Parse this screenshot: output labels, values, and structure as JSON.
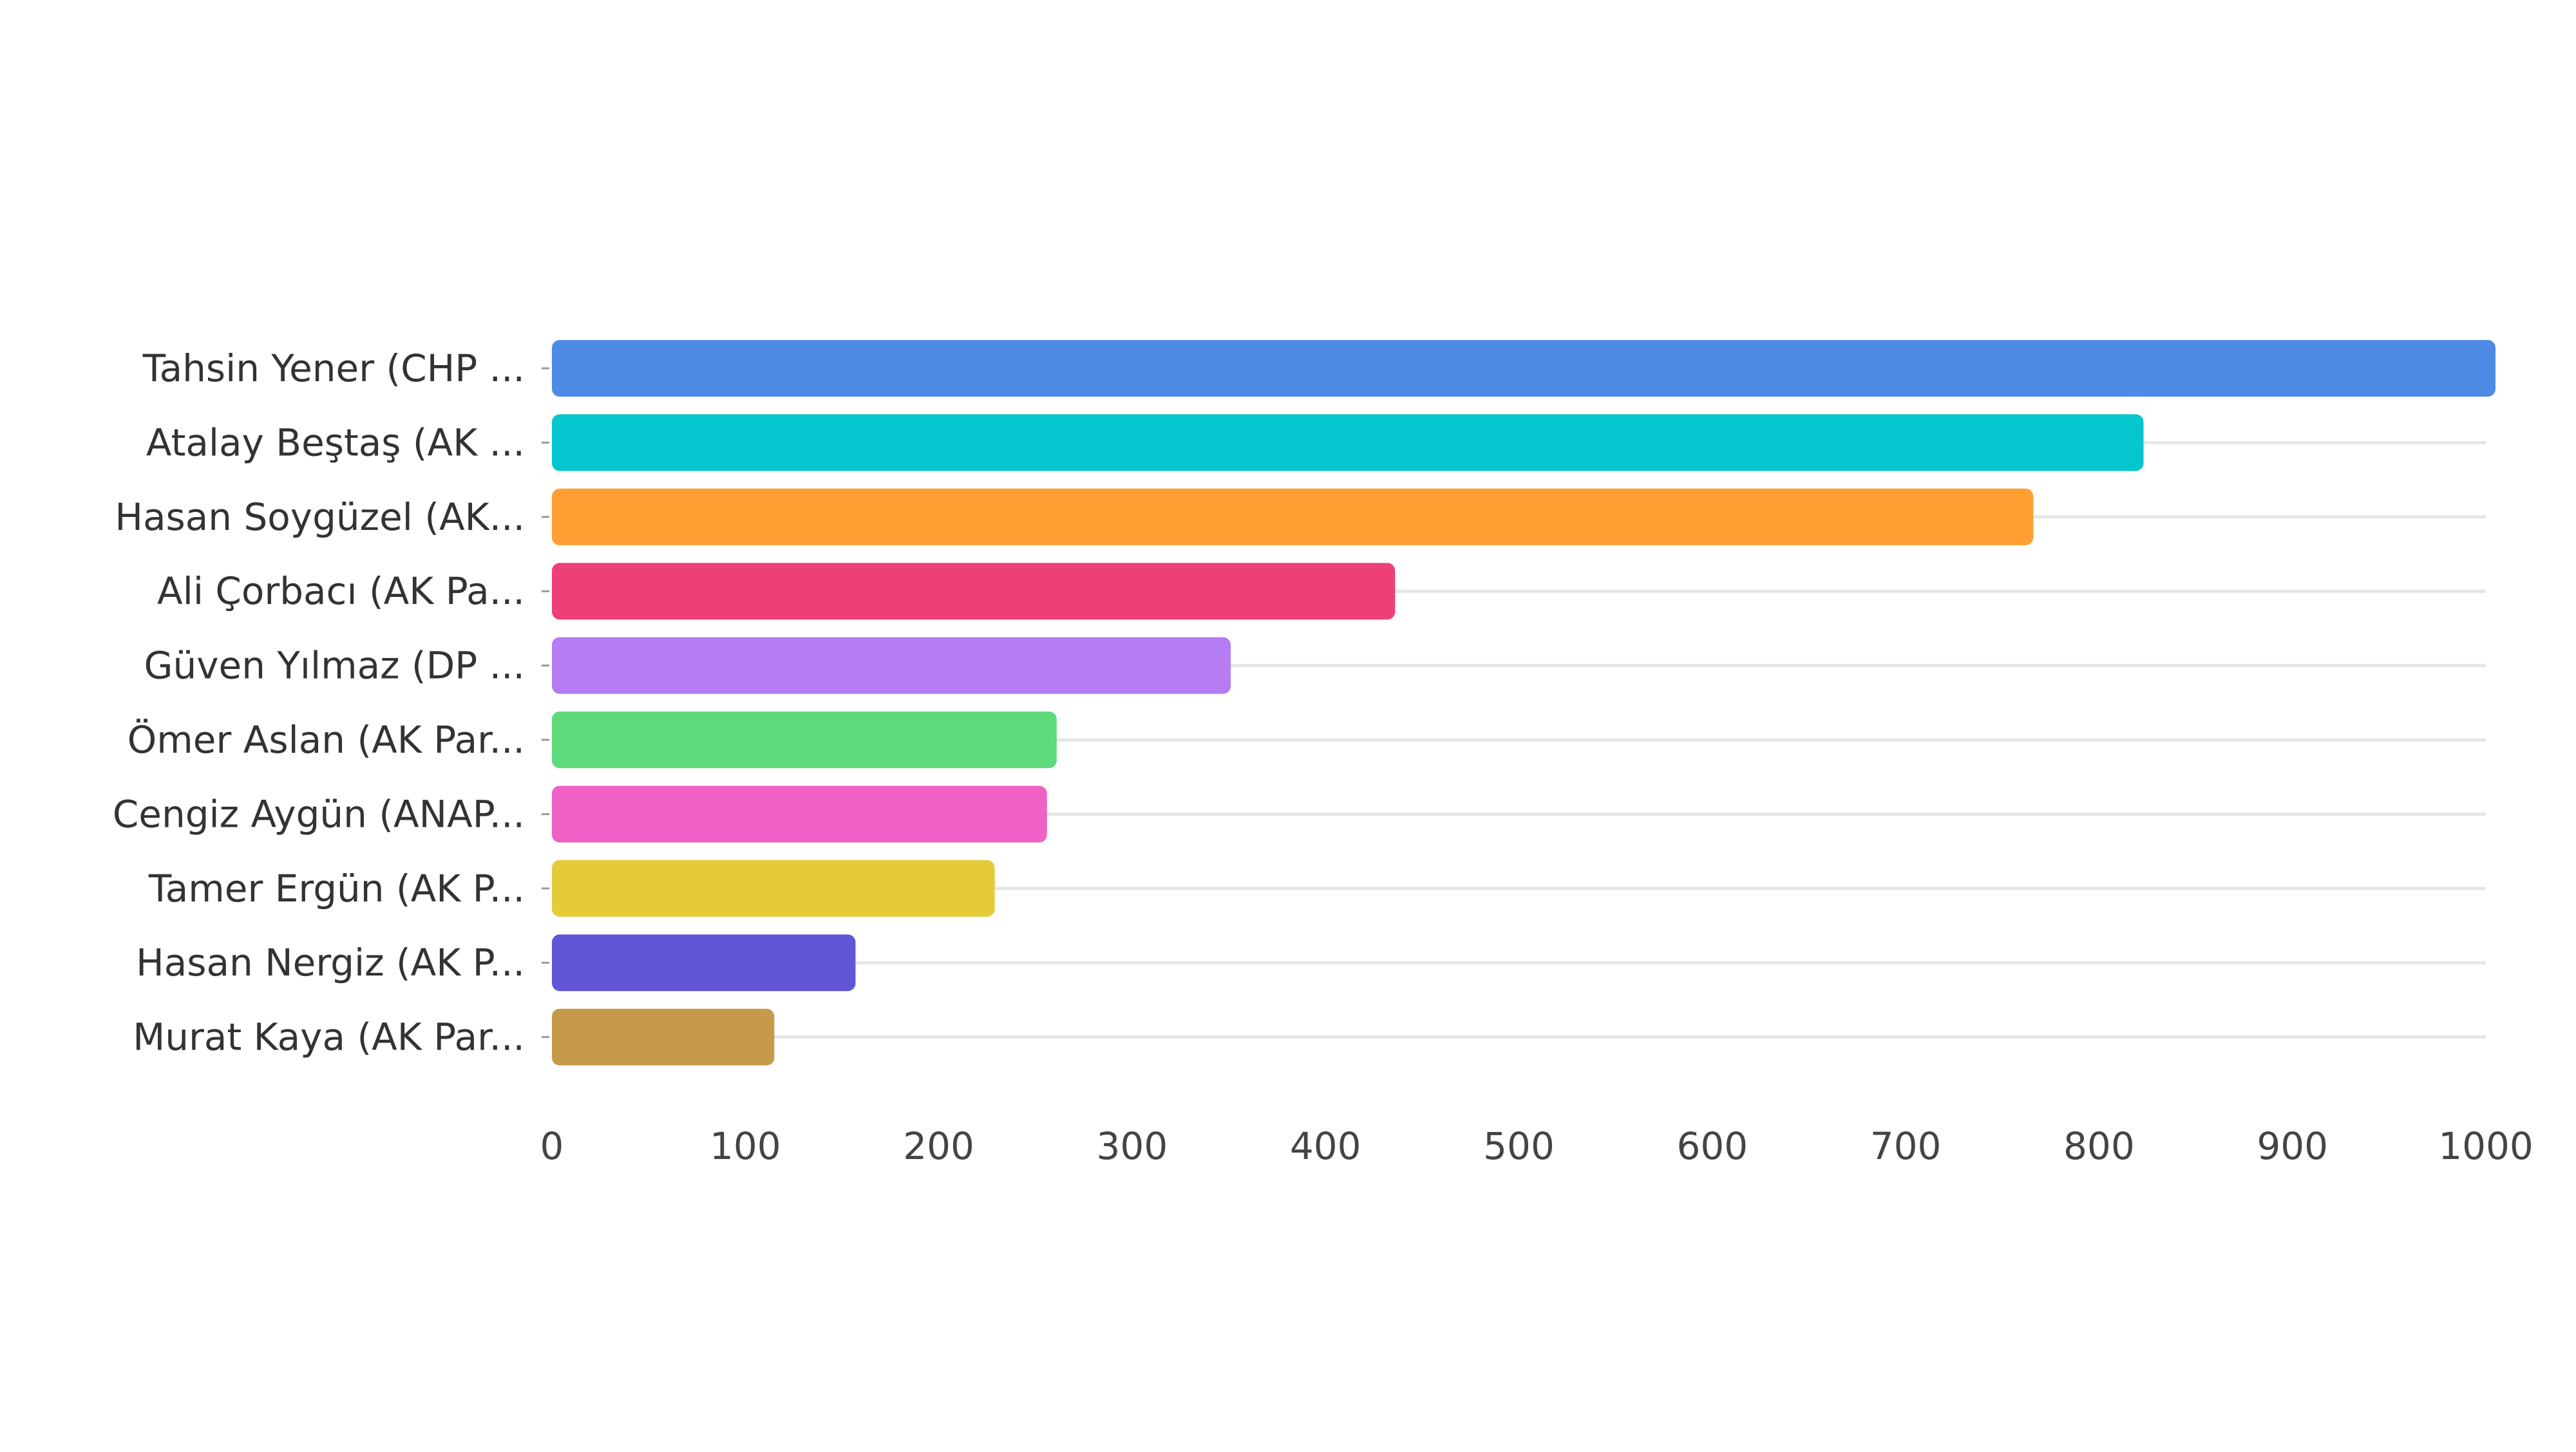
{
  "chart_data": {
    "type": "bar",
    "orientation": "horizontal",
    "title": "",
    "xlabel": "",
    "ylabel": "",
    "xlim": [
      0,
      1000
    ],
    "x_ticks": [
      0,
      100,
      200,
      300,
      400,
      500,
      600,
      700,
      800,
      900,
      1000
    ],
    "grid": true,
    "legend": "none",
    "categories": [
      "Tahsin Yener (CHP ...",
      "Atalay Beştaş (AK ...",
      "Hasan Soygüzel (AK...",
      "Ali Çorbacı (AK Pa...",
      "Güven Yılmaz (DP ...",
      "Ömer Aslan (AK Par...",
      "Cengiz Aygün (ANAP...",
      "Tamer Ergün (AK P...",
      "Hasan Nergiz (AK P...",
      "Murat Kaya (AK Par..."
    ],
    "values": [
      1005,
      823,
      766,
      436,
      351,
      261,
      256,
      229,
      157,
      115
    ],
    "colors": [
      "#4e8be4",
      "#05c6ce",
      "#ff9f33",
      "#ed4077",
      "#b57cf4",
      "#5ed97c",
      "#f061c6",
      "#e6cb39",
      "#6256d7",
      "#c69a49"
    ]
  }
}
